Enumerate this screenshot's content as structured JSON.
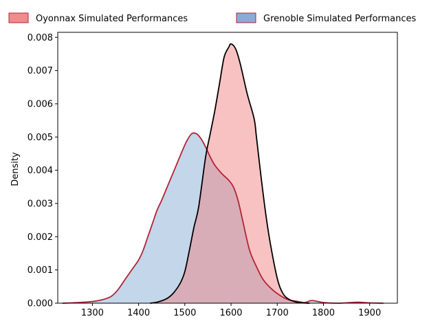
{
  "chart_data": {
    "type": "area",
    "title": "",
    "xlabel": "",
    "ylabel": "Density",
    "xlim": [
      1225,
      1960
    ],
    "ylim": [
      0,
      0.00815
    ],
    "xticks": [
      1300,
      1400,
      1500,
      1600,
      1700,
      1800,
      1900
    ],
    "yticks": [
      0.0,
      0.001,
      0.002,
      0.003,
      0.004,
      0.005,
      0.006,
      0.007,
      0.008
    ],
    "ytick_labels": [
      "0.000",
      "0.001",
      "0.002",
      "0.003",
      "0.004",
      "0.005",
      "0.006",
      "0.007",
      "0.008"
    ],
    "grid": false,
    "legend_position": "top-center",
    "series": [
      {
        "name": "Oyonnax Simulated Performances",
        "fill_color": "#f08080",
        "line_color": "#000000",
        "x": [
          1425,
          1440,
          1460,
          1475,
          1490,
          1500,
          1510,
          1520,
          1530,
          1545,
          1555,
          1565,
          1575,
          1585,
          1595,
          1600,
          1610,
          1620,
          1635,
          1650,
          1655,
          1665,
          1675,
          1685,
          1700,
          1712,
          1725,
          1740,
          1755,
          1770
        ],
        "values": [
          0.0,
          3e-05,
          0.00013,
          0.0003,
          0.0006,
          0.00095,
          0.0016,
          0.0023,
          0.0029,
          0.0044,
          0.0051,
          0.0058,
          0.0066,
          0.0074,
          0.0077,
          0.0078,
          0.00765,
          0.0072,
          0.0063,
          0.00555,
          0.005,
          0.0038,
          0.0027,
          0.0018,
          0.00075,
          0.0003,
          0.00012,
          4e-05,
          1e-05,
          0.0
        ]
      },
      {
        "name": "Grenoble Simulated Performances",
        "fill_color": "#7ba3d0",
        "line_color": "#b22234",
        "x": [
          1235,
          1270,
          1300,
          1320,
          1340,
          1355,
          1370,
          1385,
          1400,
          1410,
          1420,
          1430,
          1440,
          1450,
          1465,
          1480,
          1495,
          1505,
          1515,
          1525,
          1535,
          1545,
          1555,
          1565,
          1580,
          1595,
          1605,
          1615,
          1625,
          1640,
          1655,
          1670,
          1690,
          1710,
          1725,
          1745,
          1760,
          1775,
          1800,
          1830,
          1860,
          1875,
          1900,
          1930
        ],
        "values": [
          0.0,
          2e-05,
          5e-05,
          0.0001,
          0.0002,
          0.0004,
          0.0007,
          0.001,
          0.0013,
          0.0016,
          0.002,
          0.0024,
          0.0028,
          0.0031,
          0.0036,
          0.0041,
          0.0046,
          0.0049,
          0.0051,
          0.0051,
          0.00495,
          0.0047,
          0.0044,
          0.00415,
          0.0039,
          0.0037,
          0.0035,
          0.0031,
          0.0025,
          0.0016,
          0.0011,
          0.0007,
          0.0004,
          0.0002,
          0.0001,
          5e-05,
          2e-05,
          8e-05,
          2e-05,
          0.0,
          2e-05,
          3e-05,
          1e-05,
          0.0
        ]
      }
    ]
  }
}
